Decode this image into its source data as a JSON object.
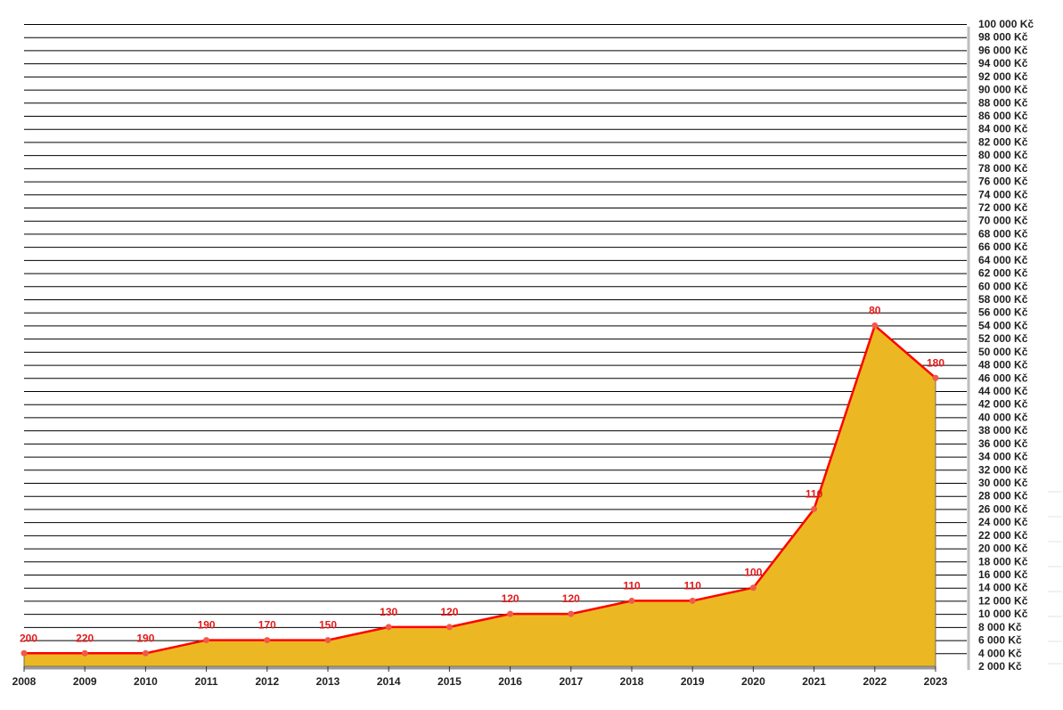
{
  "chart_data": {
    "type": "area",
    "title": "",
    "xlabel": "",
    "ylabel": "",
    "x": [
      "2008",
      "2009",
      "2010",
      "2011",
      "2012",
      "2013",
      "2014",
      "2015",
      "2016",
      "2017",
      "2018",
      "2019",
      "2020",
      "2021",
      "2022",
      "2023"
    ],
    "series": [
      {
        "values": [
          4000,
          4000,
          4000,
          6000,
          6000,
          6000,
          8000,
          8000,
          10000,
          10000,
          12000,
          12000,
          14000,
          26000,
          54000,
          46000
        ],
        "point_labels": [
          "200",
          "220",
          "190",
          "190",
          "170",
          "150",
          "130",
          "120",
          "120",
          "120",
          "110",
          "110",
          "100",
          "110",
          "80",
          "180"
        ]
      }
    ],
    "ylim": [
      2000,
      100000
    ],
    "y_ticks": [
      "2 000 Kč",
      "4 000 Kč",
      "6 000 Kč",
      "8 000 Kč",
      "10 000 Kč",
      "12 000 Kč",
      "14 000 Kč",
      "16 000 Kč",
      "18 000 Kč",
      "20 000 Kč",
      "22 000 Kč",
      "24 000 Kč",
      "26 000 Kč",
      "28 000 Kč",
      "30 000 Kč",
      "32 000 Kč",
      "34 000 Kč",
      "36 000 Kč",
      "38 000 Kč",
      "40 000 Kč",
      "42 000 Kč",
      "44 000 Kč",
      "46 000 Kč",
      "48 000 Kč",
      "50 000 Kč",
      "52 000 Kč",
      "54 000 Kč",
      "56 000 Kč",
      "58 000 Kč",
      "60 000 Kč",
      "62 000 Kč",
      "64 000 Kč",
      "66 000 Kč",
      "68 000 Kč",
      "70 000 Kč",
      "72 000 Kč",
      "74 000 Kč",
      "76 000 Kč",
      "78 000 Kč",
      "80 000 Kč",
      "82 000 Kč",
      "84 000 Kč",
      "86 000 Kč",
      "88 000 Kč",
      "90 000 Kč",
      "92 000 Kč",
      "94 000 Kč",
      "96 000 Kč",
      "98 000 Kč",
      "100 000 Kč"
    ],
    "y_axis_side": "right",
    "grid": true,
    "colors": {
      "line": "#ff0000",
      "fill": "#ebb823",
      "label": "#e31a1a",
      "grid": "#000000"
    }
  }
}
